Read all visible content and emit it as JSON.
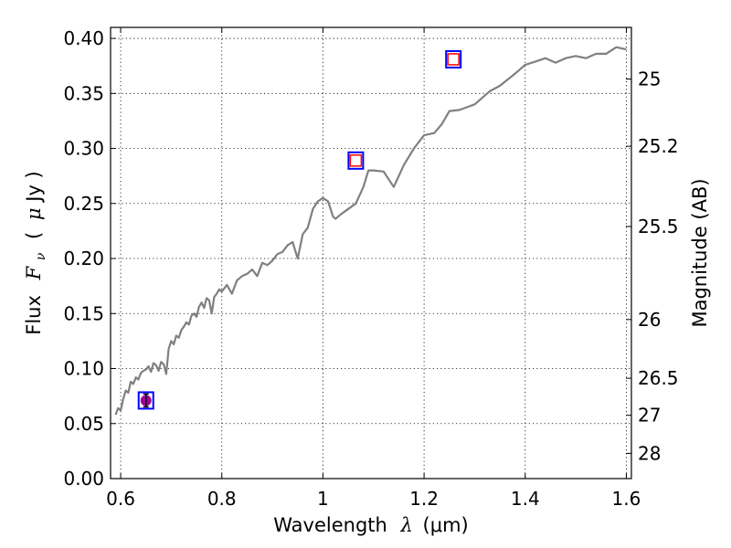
{
  "chart_data": {
    "type": "line",
    "xlabel": {
      "prefix": "Wavelength",
      "symbol": "λ",
      "unit": "(μm)"
    },
    "ylabel": {
      "prefix": "Flux",
      "symbol": "F",
      "subscript": "ν",
      "unit_open": "(",
      "unit_mu": "μ",
      "unit_rest": "Jy )"
    },
    "y2label": "Magnitude (AB)",
    "xlim": [
      0.58,
      1.61
    ],
    "ylim": [
      0.0,
      0.41
    ],
    "grid": true,
    "x_ticks": [
      0.6,
      0.8,
      1.0,
      1.2,
      1.4,
      1.6
    ],
    "x_tick_labels": [
      "0.6",
      "0.8",
      "1",
      "1.2",
      "1.4",
      "1.6"
    ],
    "y_ticks": [
      0.0,
      0.05,
      0.1,
      0.15,
      0.2,
      0.25,
      0.3,
      0.35,
      0.4
    ],
    "y_tick_labels": [
      "0.00",
      "0.05",
      "0.10",
      "0.15",
      "0.20",
      "0.25",
      "0.30",
      "0.35",
      "0.40"
    ],
    "mag_ticks": [
      25,
      25.2,
      25.5,
      26,
      26.5,
      27,
      28
    ],
    "mag_tick_labels": [
      "25",
      "25.2",
      "25.5",
      "26",
      "26.5",
      "27",
      "28"
    ],
    "model_color": "#808080",
    "model_curve": {
      "x": [
        0.59,
        0.595,
        0.6,
        0.605,
        0.61,
        0.615,
        0.62,
        0.625,
        0.63,
        0.635,
        0.64,
        0.645,
        0.65,
        0.655,
        0.66,
        0.665,
        0.67,
        0.675,
        0.68,
        0.685,
        0.69,
        0.695,
        0.7,
        0.705,
        0.71,
        0.715,
        0.72,
        0.725,
        0.73,
        0.735,
        0.74,
        0.745,
        0.75,
        0.755,
        0.76,
        0.765,
        0.77,
        0.775,
        0.78,
        0.785,
        0.79,
        0.795,
        0.8,
        0.81,
        0.82,
        0.83,
        0.84,
        0.85,
        0.86,
        0.87,
        0.88,
        0.89,
        0.9,
        0.91,
        0.92,
        0.93,
        0.94,
        0.95,
        0.96,
        0.97,
        0.98,
        0.99,
        1.0,
        1.01,
        1.02,
        1.025,
        1.035,
        1.05,
        1.065,
        1.08,
        1.09,
        1.1,
        1.12,
        1.14,
        1.16,
        1.18,
        1.2,
        1.22,
        1.235,
        1.25,
        1.27,
        1.3,
        1.33,
        1.35,
        1.38,
        1.4,
        1.42,
        1.44,
        1.46,
        1.48,
        1.5,
        1.52,
        1.54,
        1.56,
        1.58,
        1.6
      ],
      "y": [
        0.058,
        0.064,
        0.062,
        0.072,
        0.08,
        0.078,
        0.088,
        0.086,
        0.092,
        0.09,
        0.096,
        0.098,
        0.099,
        0.102,
        0.097,
        0.105,
        0.103,
        0.098,
        0.106,
        0.104,
        0.095,
        0.118,
        0.125,
        0.122,
        0.13,
        0.128,
        0.135,
        0.138,
        0.142,
        0.14,
        0.148,
        0.15,
        0.147,
        0.156,
        0.16,
        0.155,
        0.164,
        0.162,
        0.15,
        0.165,
        0.168,
        0.172,
        0.17,
        0.176,
        0.168,
        0.18,
        0.184,
        0.186,
        0.19,
        0.184,
        0.196,
        0.194,
        0.198,
        0.204,
        0.206,
        0.212,
        0.215,
        0.2,
        0.222,
        0.228,
        0.245,
        0.252,
        0.255,
        0.252,
        0.238,
        0.236,
        0.24,
        0.245,
        0.25,
        0.265,
        0.28,
        0.28,
        0.279,
        0.265,
        0.285,
        0.3,
        0.312,
        0.314,
        0.322,
        0.334,
        0.335,
        0.34,
        0.352,
        0.357,
        0.368,
        0.376,
        0.379,
        0.382,
        0.378,
        0.382,
        0.384,
        0.382,
        0.386,
        0.386,
        0.392,
        0.39
      ]
    },
    "photometry": [
      {
        "x": 0.65,
        "y": 0.071,
        "box_color": "#0000ff",
        "marker": "circle",
        "marker_color": "#990099"
      },
      {
        "x": 1.065,
        "y": 0.289,
        "box_color": "#0000ff",
        "marker": "square",
        "marker_color": "#ff0000"
      },
      {
        "x": 1.258,
        "y": 0.381,
        "box_color": "#0000ff",
        "marker": "square",
        "marker_color": "#ff0000"
      }
    ]
  }
}
